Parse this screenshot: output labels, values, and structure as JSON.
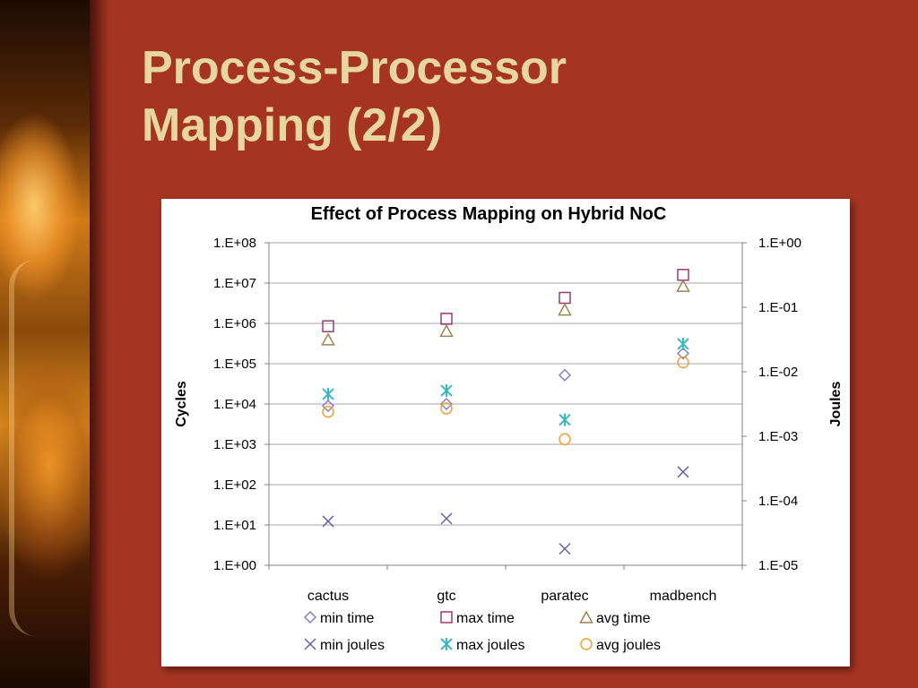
{
  "slide": {
    "title_line1": "Process-Processor",
    "title_line2": "Mapping (2/2)"
  },
  "colors": {
    "background": "#a63423",
    "title_text": "#e8d6a2",
    "min_time": "#8a7fc0",
    "max_time": "#9b3a72",
    "avg_time": "#9c8450",
    "min_joules": "#6b5fa6",
    "max_joules": "#3ab8c0",
    "avg_joules": "#f0a030"
  },
  "chart_data": {
    "type": "scatter",
    "title": "Effect of Process Mapping on Hybrid NoC",
    "categories": [
      "cactus",
      "gtc",
      "paratec",
      "madbench"
    ],
    "y_left": {
      "label": "Cycles",
      "scale": "log",
      "range": [
        1,
        100000000
      ],
      "ticks": [
        1,
        10,
        100,
        1000,
        10000,
        100000,
        1000000,
        10000000,
        100000000
      ],
      "tick_labels": [
        "1.E+00",
        "1.E+01",
        "1.E+02",
        "1.E+03",
        "1.E+04",
        "1.E+05",
        "1.E+06",
        "1.E+07",
        "1.E+08"
      ]
    },
    "y_right": {
      "label": "Joules",
      "scale": "log",
      "range": [
        1e-05,
        1
      ],
      "ticks": [
        1e-05,
        0.0001,
        0.001,
        0.01,
        0.1,
        1
      ],
      "tick_labels": [
        "1.E-05",
        "1.E-04",
        "1.E-03",
        "1.E-02",
        "1.E-01",
        "1.E+00"
      ]
    },
    "grid": true,
    "legend_position": "bottom",
    "series": [
      {
        "name": "min time",
        "axis": "left",
        "marker": "diamond",
        "color": "#8a7fc0",
        "values": [
          9000,
          10000,
          52000,
          180000
        ]
      },
      {
        "name": "max time",
        "axis": "left",
        "marker": "square",
        "color": "#9b3a72",
        "values": [
          850000,
          1300000,
          4300000,
          16000000
        ]
      },
      {
        "name": "avg time",
        "axis": "left",
        "marker": "triangle",
        "color": "#9c8450",
        "values": [
          400000,
          650000,
          2200000,
          8500000
        ]
      },
      {
        "name": "min joules",
        "axis": "right",
        "marker": "x",
        "color": "#6b5fa6",
        "values": [
          4.8e-05,
          5.3e-05,
          1.8e-05,
          0.00028
        ]
      },
      {
        "name": "max joules",
        "axis": "right",
        "marker": "asterisk",
        "color": "#3ab8c0",
        "values": [
          0.0045,
          0.0051,
          0.0018,
          0.027
        ]
      },
      {
        "name": "avg joules",
        "axis": "right",
        "marker": "circle",
        "color": "#f0a030",
        "values": [
          0.0024,
          0.0027,
          0.0009,
          0.014
        ]
      }
    ]
  }
}
